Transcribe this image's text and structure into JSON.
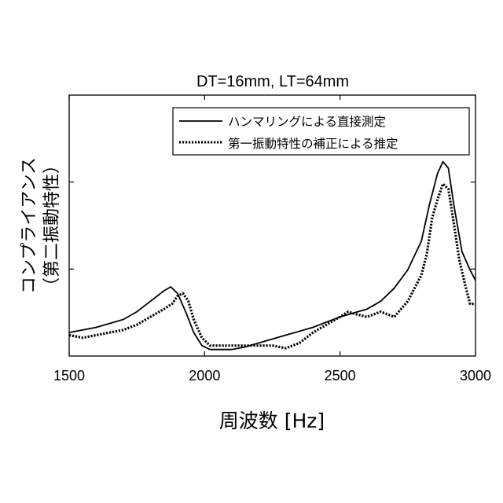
{
  "chart_data": {
    "type": "line",
    "title": "DT=16mm, LT=64mm",
    "xlabel": "周波数 [Hz]",
    "ylabel_lines": [
      "コンプライアンス",
      "（第二振動特性）"
    ],
    "xlim": [
      1500,
      3000
    ],
    "ylim": [
      0,
      1
    ],
    "x_ticks": [
      1500,
      2000,
      2500,
      3000
    ],
    "x_tick_labels": [
      "1500",
      "2000",
      "2500",
      "3000"
    ],
    "y_tick_labels_shown": false,
    "grid": false,
    "legend_position": "top-right",
    "series": [
      {
        "name": "ハンマリングによる直接測定",
        "style": "solid",
        "color": "#000000",
        "points": [
          [
            1500,
            0.09
          ],
          [
            1600,
            0.11
          ],
          [
            1700,
            0.14
          ],
          [
            1750,
            0.17
          ],
          [
            1800,
            0.21
          ],
          [
            1850,
            0.25
          ],
          [
            1875,
            0.265
          ],
          [
            1900,
            0.24
          ],
          [
            1930,
            0.17
          ],
          [
            1960,
            0.09
          ],
          [
            1990,
            0.04
          ],
          [
            2020,
            0.025
          ],
          [
            2100,
            0.025
          ],
          [
            2150,
            0.035
          ],
          [
            2200,
            0.05
          ],
          [
            2300,
            0.08
          ],
          [
            2400,
            0.11
          ],
          [
            2500,
            0.15
          ],
          [
            2600,
            0.18
          ],
          [
            2650,
            0.21
          ],
          [
            2700,
            0.26
          ],
          [
            2750,
            0.33
          ],
          [
            2800,
            0.44
          ],
          [
            2830,
            0.58
          ],
          [
            2860,
            0.7
          ],
          [
            2880,
            0.745
          ],
          [
            2900,
            0.72
          ],
          [
            2920,
            0.58
          ],
          [
            2950,
            0.4
          ],
          [
            2980,
            0.33
          ],
          [
            3000,
            0.29
          ]
        ]
      },
      {
        "name": "第一振動特性の補正による推定",
        "style": "dotted",
        "color": "#000000",
        "points": [
          [
            1500,
            0.08
          ],
          [
            1550,
            0.07
          ],
          [
            1600,
            0.08
          ],
          [
            1650,
            0.09
          ],
          [
            1700,
            0.1
          ],
          [
            1750,
            0.12
          ],
          [
            1800,
            0.15
          ],
          [
            1850,
            0.18
          ],
          [
            1880,
            0.2
          ],
          [
            1900,
            0.23
          ],
          [
            1920,
            0.24
          ],
          [
            1940,
            0.21
          ],
          [
            1960,
            0.14
          ],
          [
            1990,
            0.07
          ],
          [
            2020,
            0.04
          ],
          [
            2080,
            0.04
          ],
          [
            2150,
            0.04
          ],
          [
            2250,
            0.04
          ],
          [
            2300,
            0.03
          ],
          [
            2350,
            0.05
          ],
          [
            2400,
            0.09
          ],
          [
            2450,
            0.12
          ],
          [
            2500,
            0.15
          ],
          [
            2530,
            0.17
          ],
          [
            2560,
            0.16
          ],
          [
            2600,
            0.15
          ],
          [
            2650,
            0.17
          ],
          [
            2700,
            0.15
          ],
          [
            2750,
            0.21
          ],
          [
            2780,
            0.27
          ],
          [
            2800,
            0.31
          ],
          [
            2820,
            0.39
          ],
          [
            2840,
            0.53
          ],
          [
            2860,
            0.6
          ],
          [
            2880,
            0.66
          ],
          [
            2900,
            0.64
          ],
          [
            2920,
            0.51
          ],
          [
            2940,
            0.37
          ],
          [
            2960,
            0.28
          ],
          [
            2980,
            0.2
          ],
          [
            3000,
            0.2
          ]
        ]
      }
    ]
  }
}
